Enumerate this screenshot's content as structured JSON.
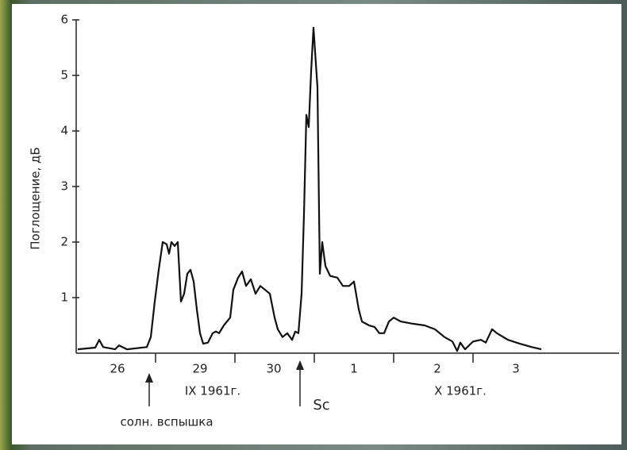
{
  "chart_data": {
    "type": "line",
    "ylabel": "Поглощение, дБ",
    "x": [
      0.02,
      0.24,
      0.29,
      0.34,
      0.49,
      0.54,
      0.64,
      0.89,
      0.94,
      0.99,
      1.04,
      1.09,
      1.14,
      1.17,
      1.2,
      1.24,
      1.28,
      1.32,
      1.36,
      1.4,
      1.44,
      1.48,
      1.52,
      1.56,
      1.6,
      1.66,
      1.72,
      1.76,
      1.8,
      1.86,
      1.94,
      1.98,
      2.04,
      2.09,
      2.14,
      2.2,
      2.26,
      2.32,
      2.38,
      2.44,
      2.5,
      2.54,
      2.6,
      2.66,
      2.72,
      2.76,
      2.8,
      2.84,
      2.87,
      2.9,
      2.93,
      2.96,
      2.99,
      3.02,
      3.04,
      3.07,
      3.1,
      3.14,
      3.2,
      3.29,
      3.36,
      3.44,
      3.5,
      3.56,
      3.6,
      3.69,
      3.76,
      3.82,
      3.88,
      3.94,
      4.0,
      4.09,
      4.24,
      4.39,
      4.52,
      4.64,
      4.74,
      4.8,
      4.84,
      4.9,
      5.0,
      5.1,
      5.16,
      5.24,
      5.3,
      5.44,
      5.59,
      5.74,
      5.86
    ],
    "values": [
      0.07,
      0.1,
      0.24,
      0.11,
      0.07,
      0.14,
      0.07,
      0.11,
      0.29,
      0.93,
      1.5,
      2.0,
      1.96,
      1.79,
      2.0,
      1.93,
      2.0,
      0.93,
      1.07,
      1.43,
      1.5,
      1.29,
      0.79,
      0.36,
      0.17,
      0.19,
      0.36,
      0.39,
      0.36,
      0.5,
      0.64,
      1.14,
      1.36,
      1.47,
      1.21,
      1.33,
      1.07,
      1.21,
      1.14,
      1.07,
      0.64,
      0.43,
      0.29,
      0.36,
      0.24,
      0.39,
      0.36,
      1.07,
      2.5,
      4.29,
      4.07,
      5.07,
      5.86,
      5.21,
      4.79,
      1.43,
      2.0,
      1.57,
      1.39,
      1.36,
      1.21,
      1.21,
      1.29,
      0.79,
      0.57,
      0.5,
      0.47,
      0.36,
      0.36,
      0.57,
      0.64,
      0.57,
      0.53,
      0.5,
      0.43,
      0.29,
      0.21,
      0.04,
      0.19,
      0.07,
      0.21,
      0.24,
      0.19,
      0.43,
      0.36,
      0.24,
      0.17,
      0.11,
      0.07
    ],
    "color": "#111111",
    "xlim": [
      0,
      6.84
    ],
    "ylim": [
      0,
      6
    ],
    "yticks": [
      1,
      2,
      3,
      4,
      5,
      6
    ],
    "xticks": [
      {
        "value": 0.52,
        "label": "26"
      },
      {
        "value": 1.56,
        "label": "29"
      },
      {
        "value": 2.49,
        "label": "30"
      },
      {
        "value": 3.5,
        "label": "1"
      },
      {
        "value": 4.55,
        "label": "2"
      },
      {
        "value": 5.54,
        "label": "3"
      }
    ],
    "x_minor_ticks": [
      1,
      2,
      3,
      4,
      5
    ],
    "annotations": [
      "IX 1961г.",
      "X 1961г.",
      "солн. вспышка",
      "Sc"
    ]
  }
}
